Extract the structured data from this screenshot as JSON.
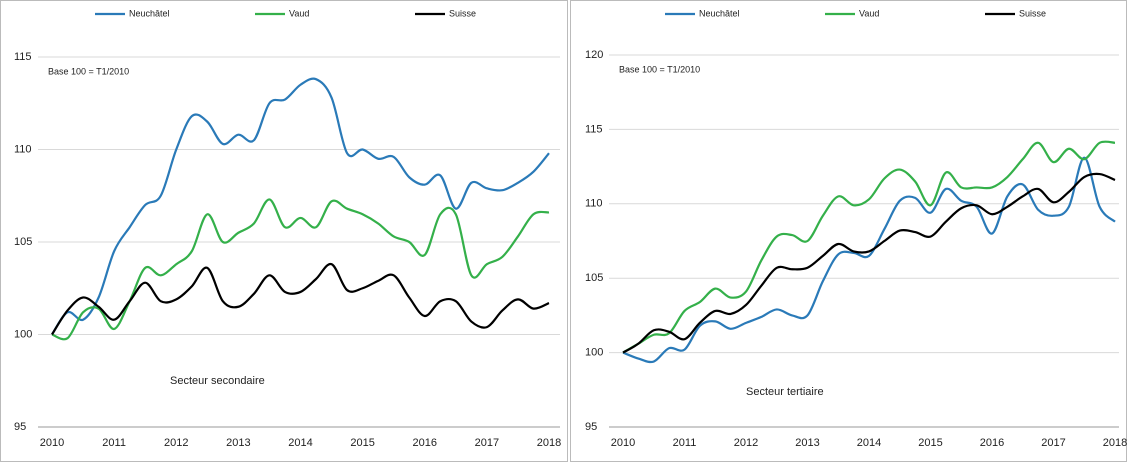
{
  "chart_data": [
    {
      "type": "line",
      "annotations": [
        "Base 100 = T1/2010",
        "Secteur secondaire"
      ],
      "categories": [
        "2010",
        null,
        null,
        null,
        "2011",
        null,
        null,
        null,
        "2012",
        null,
        null,
        null,
        "2013",
        null,
        null,
        null,
        "2014",
        null,
        null,
        null,
        "2015",
        null,
        null,
        null,
        "2016",
        null,
        null,
        null,
        "2017",
        null,
        null,
        null,
        "2018"
      ],
      "series": [
        {
          "name": "Neuchâtel",
          "color": "#2a7ab8",
          "values": [
            100,
            101.2,
            100.8,
            102,
            104.5,
            105.8,
            107,
            107.5,
            110,
            111.8,
            111.5,
            110.3,
            110.8,
            110.5,
            112.5,
            112.7,
            113.5,
            113.8,
            112.8,
            109.8,
            110,
            109.5,
            109.6,
            108.5,
            108.1,
            108.6,
            106.8,
            108.2,
            107.9,
            107.8,
            108.2,
            108.8,
            109.8
          ]
        },
        {
          "name": "Vaud",
          "color": "#34b04a",
          "values": [
            100,
            99.8,
            101.2,
            101.4,
            100.3,
            101.8,
            103.6,
            103.2,
            103.8,
            104.5,
            106.5,
            105,
            105.5,
            106,
            107.3,
            105.8,
            106.3,
            105.8,
            107.2,
            106.8,
            106.5,
            106,
            105.3,
            105,
            104.3,
            106.5,
            106.5,
            103.2,
            103.8,
            104.2,
            105.3,
            106.5,
            106.6
          ]
        },
        {
          "name": "Suisse",
          "color": "#000000",
          "values": [
            100,
            101.3,
            102,
            101.5,
            100.8,
            101.8,
            102.8,
            101.8,
            101.9,
            102.6,
            103.6,
            101.8,
            101.5,
            102.2,
            103.2,
            102.3,
            102.3,
            103,
            103.8,
            102.4,
            102.5,
            102.9,
            103.2,
            102,
            101,
            101.8,
            101.8,
            100.7,
            100.4,
            101.3,
            101.9,
            101.4,
            101.7
          ]
        }
      ],
      "ylim": [
        95,
        115
      ],
      "yticks": [
        95,
        100,
        105,
        110,
        115
      ],
      "grid": true,
      "legend": "top"
    },
    {
      "type": "line",
      "annotations": [
        "Base 100 = T1/2010",
        "Secteur tertiaire"
      ],
      "categories": [
        "2010",
        null,
        null,
        null,
        "2011",
        null,
        null,
        null,
        "2012",
        null,
        null,
        null,
        "2013",
        null,
        null,
        null,
        "2014",
        null,
        null,
        null,
        "2015",
        null,
        null,
        null,
        "2016",
        null,
        null,
        null,
        "2017",
        null,
        null,
        null,
        "2018"
      ],
      "series": [
        {
          "name": "Neuchâtel",
          "color": "#2a7ab8",
          "values": [
            100,
            99.6,
            99.4,
            100.3,
            100.2,
            101.8,
            102.1,
            101.6,
            102,
            102.4,
            102.9,
            102.5,
            102.5,
            104.8,
            106.6,
            106.7,
            106.5,
            108.3,
            110.2,
            110.4,
            109.4,
            111,
            110.2,
            109.8,
            108,
            110.5,
            111.3,
            109.6,
            109.2,
            109.8,
            113.1,
            109.8,
            108.8
          ]
        },
        {
          "name": "Vaud",
          "color": "#34b04a",
          "values": [
            100,
            100.6,
            101.2,
            101.3,
            102.8,
            103.4,
            104.3,
            103.7,
            104.1,
            106.2,
            107.8,
            107.9,
            107.5,
            109.2,
            110.5,
            109.9,
            110.3,
            111.7,
            112.3,
            111.5,
            109.9,
            112.1,
            111.1,
            111.1,
            111.1,
            111.8,
            113,
            114.1,
            112.8,
            113.7,
            113,
            114.1,
            114.1
          ]
        },
        {
          "name": "Suisse",
          "color": "#000000",
          "values": [
            100,
            100.6,
            101.5,
            101.4,
            100.9,
            102,
            102.8,
            102.6,
            103.2,
            104.5,
            105.7,
            105.6,
            105.7,
            106.5,
            107.3,
            106.8,
            106.8,
            107.5,
            108.2,
            108.1,
            107.8,
            108.8,
            109.7,
            109.9,
            109.3,
            109.8,
            110.5,
            111,
            110.1,
            110.8,
            111.8,
            112,
            111.6
          ]
        }
      ],
      "ylim": [
        95,
        120
      ],
      "yticks": [
        95,
        100,
        105,
        110,
        115,
        120
      ],
      "grid": true,
      "legend": "top"
    }
  ]
}
